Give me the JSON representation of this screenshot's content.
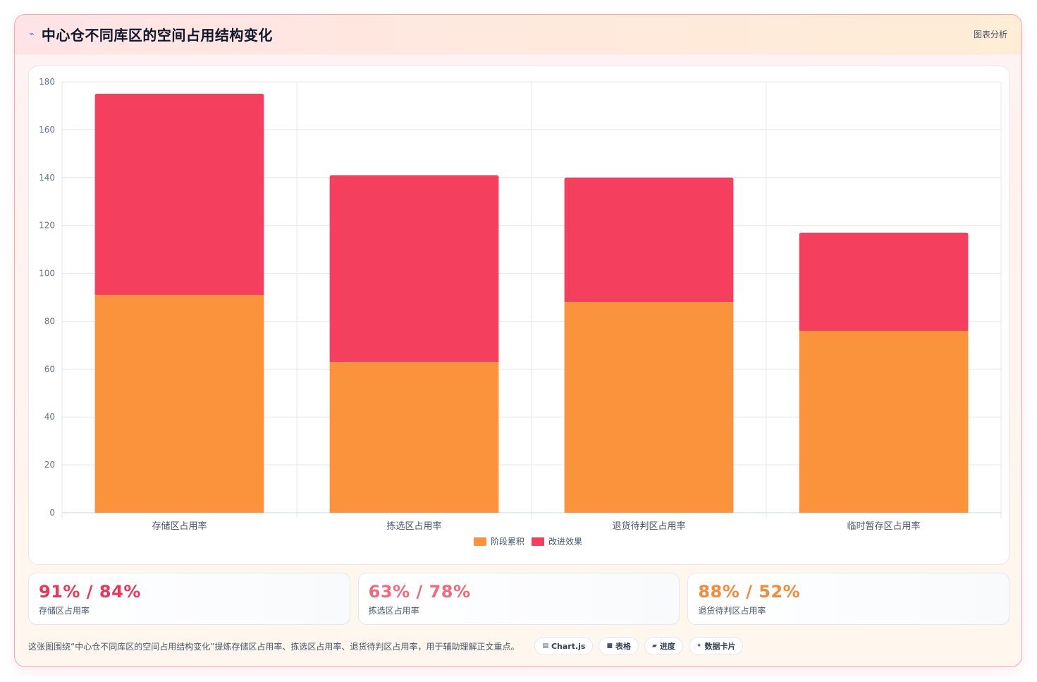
{
  "header": {
    "icon": "chart-line-icon",
    "title": "中心仓不同库区的空间占用结构变化",
    "tag": "图表分析"
  },
  "colors": {
    "stage": "#fb923c",
    "improve": "#f43f5e"
  },
  "chart_data": {
    "type": "bar",
    "stacked": true,
    "categories": [
      "存储区占用率",
      "拣选区占用率",
      "退货待判区占用率",
      "临时暂存区占用率"
    ],
    "series": [
      {
        "name": "阶段累积",
        "values": [
          91,
          63,
          88,
          76
        ],
        "color": "#fb923c"
      },
      {
        "name": "改进效果",
        "values": [
          84,
          78,
          52,
          41
        ],
        "color": "#f43f5e"
      }
    ],
    "ylim": [
      0,
      180
    ],
    "yticks": [
      "0",
      "20",
      "40",
      "60",
      "80",
      "100",
      "120",
      "140",
      "160",
      "180"
    ],
    "grid": true,
    "legend_position": "bottom-center"
  },
  "stats": [
    {
      "value": "91% / 84%",
      "label": "存储区占用率",
      "color": "#e8385a"
    },
    {
      "value": "63% / 78%",
      "label": "拣选区占用率",
      "color": "#f06a7e"
    },
    {
      "value": "88% / 52%",
      "label": "退货待判区占用率",
      "color": "#f28c3a"
    }
  ],
  "footer": {
    "caption": "这张图围绕“中心仓不同库区的空间占用结构变化”提炼存储区占用率、拣选区占用率、退货待判区占用率，用于辅助理解正文重点。",
    "pills": [
      {
        "icon": "chart-icon",
        "glyph": "▤",
        "label": "Chart.js"
      },
      {
        "icon": "table-icon",
        "glyph": "■",
        "label": "表格"
      },
      {
        "icon": "progress-icon",
        "glyph": "▰",
        "label": "进度"
      },
      {
        "icon": "sparkle-icon",
        "glyph": "✦",
        "label": "数据卡片"
      }
    ]
  }
}
